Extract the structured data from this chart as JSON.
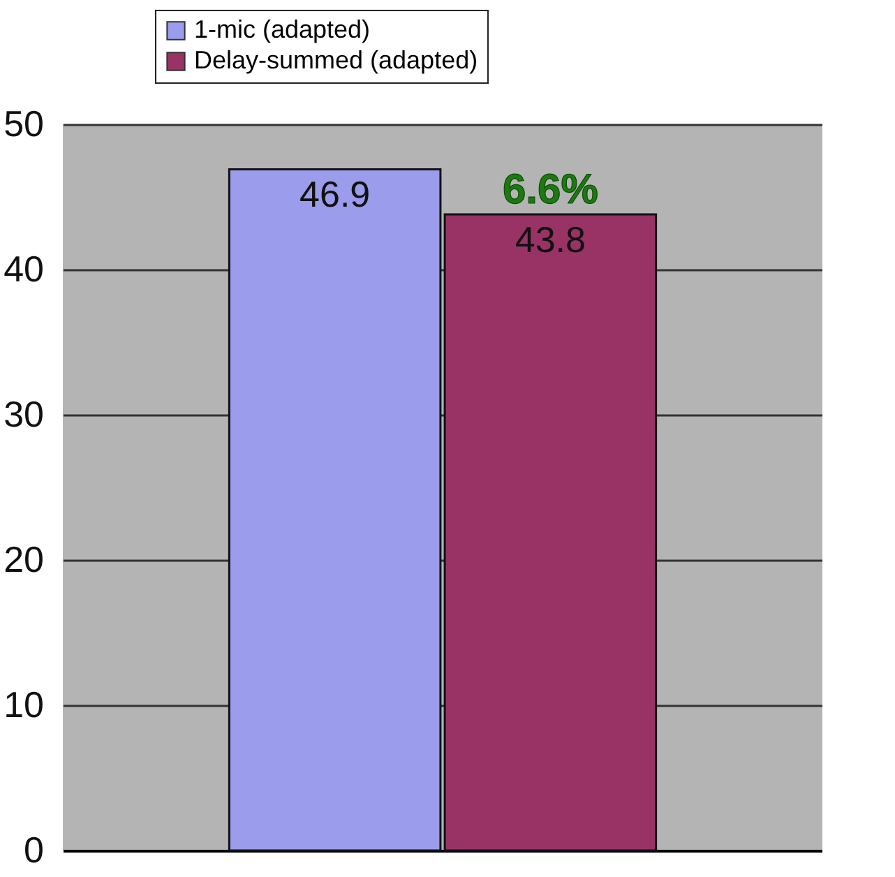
{
  "chart_data": {
    "type": "bar",
    "categories": [
      null
    ],
    "series": [
      {
        "name": "1-mic (adapted)",
        "color": "#9c9cec",
        "values": [
          46.9
        ]
      },
      {
        "name": "Delay-summed (adapted)",
        "color": "#993366",
        "values": [
          43.8
        ]
      }
    ],
    "ylim": [
      0,
      50
    ],
    "yticks": [
      0,
      10,
      20,
      30,
      40,
      50
    ],
    "grid": "y",
    "legend": "top",
    "data_labels": true,
    "annotations": [
      "6.6%"
    ]
  }
}
